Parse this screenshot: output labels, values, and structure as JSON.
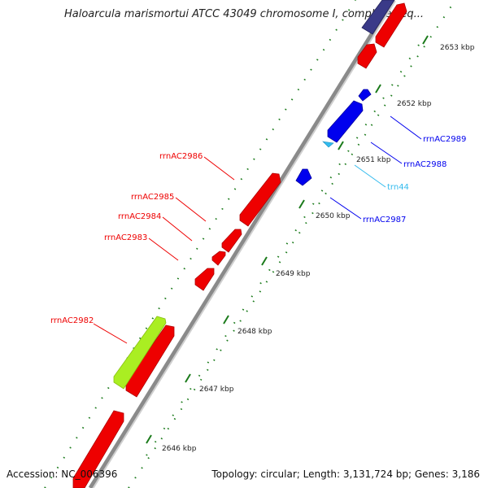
{
  "title": "Haloarcula marismortui ATCC 43049 chromosome I, complete seq...",
  "accession_text": "Accession: NC_006396",
  "summary_text": "Topology: circular; Length: 3,131,724 bp; Genes: 3,186",
  "colors": {
    "rRNA_forward": "#ff0000",
    "rRNA_reverse": "#0000ff",
    "tRNA": "#33bbee",
    "misc_feature": "#aaee22",
    "backbone": "#8a8a8a",
    "tick": "#1a7a1a"
  },
  "scale_labels": [
    "2646 kbp",
    "2647 kbp",
    "2648 kbp",
    "2649 kbp",
    "2650 kbp",
    "2651 kbp",
    "2652 kbp",
    "2653 kbp"
  ],
  "gene_labels": {
    "rrnAC2982": "rrnAC2982",
    "rrnAC2983": "rrnAC2983",
    "rrnAC2984": "rrnAC2984",
    "rrnAC2985": "rrnAC2985",
    "rrnAC2986": "rrnAC2986",
    "rrnAC2987": "rrnAC2987",
    "trn44": "trn44",
    "rrnAC2988": "rrnAC2988",
    "rrnAC2989": "rrnAC2989"
  }
}
